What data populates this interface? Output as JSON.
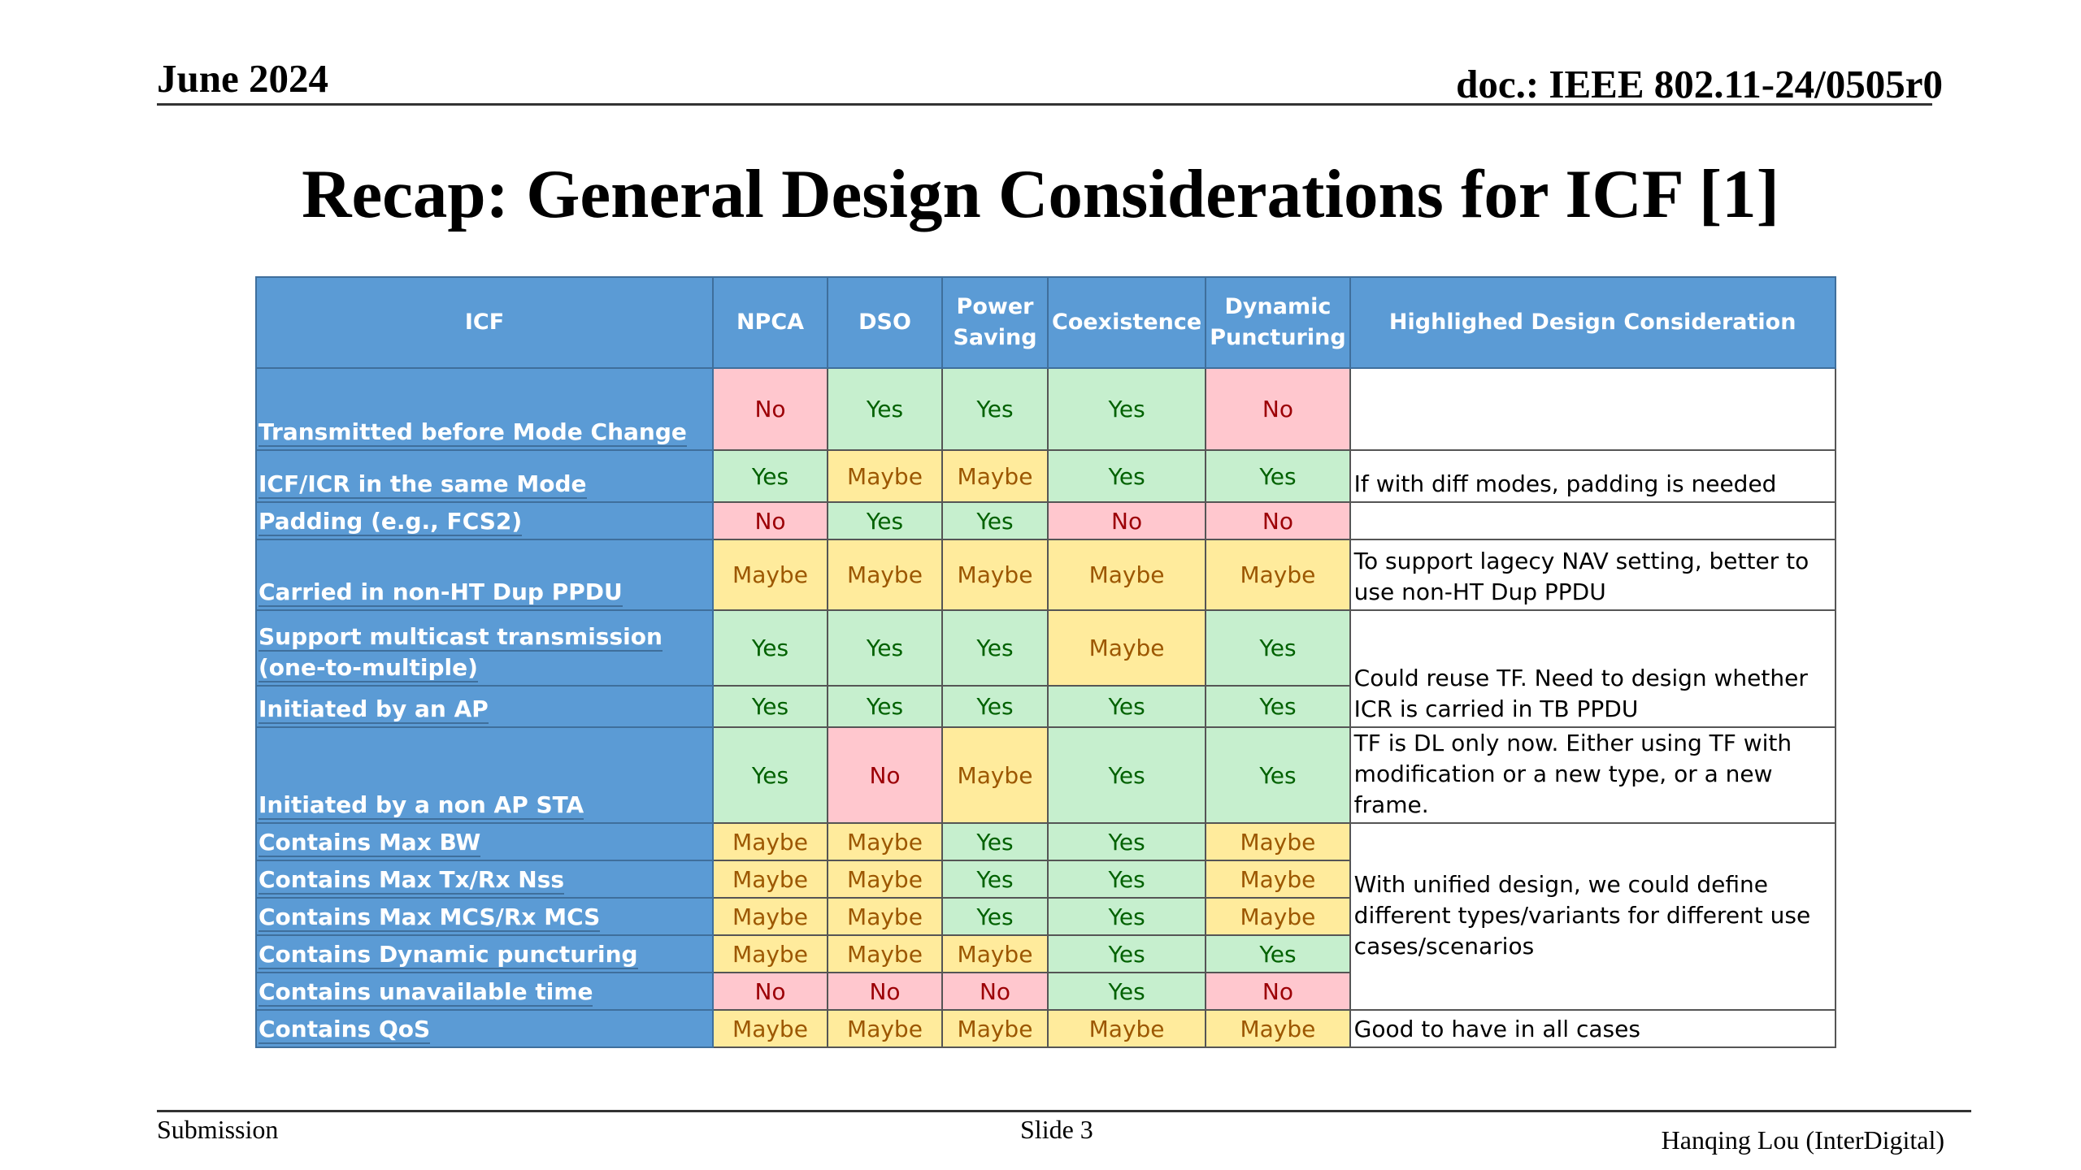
{
  "header": {
    "date": "June 2024",
    "doc": "doc.: IEEE 802.11-24/0505r0"
  },
  "title": "Recap: General Design Considerations for ICF [1]",
  "table": {
    "headers": [
      "ICF",
      "NPCA",
      "DSO",
      "Power Saving",
      "Coexistence",
      "Dynamic Puncturing",
      "Highlighed Design Consideration"
    ],
    "rows": [
      {
        "label": "Transmitted before Mode Change",
        "values": [
          "No",
          "Yes",
          "Yes",
          "Yes",
          "No"
        ]
      },
      {
        "label": "ICF/ICR in the same Mode",
        "values": [
          "Yes",
          "Maybe",
          "Maybe",
          "Yes",
          "Yes"
        ]
      },
      {
        "label": "Padding (e.g., FCS2)",
        "values": [
          "No",
          "Yes",
          "Yes",
          "No",
          "No"
        ]
      },
      {
        "label": "Carried in non-HT Dup PPDU",
        "values": [
          "Maybe",
          "Maybe",
          "Maybe",
          "Maybe",
          "Maybe"
        ]
      },
      {
        "label": "Support multicast transmission (one-to-multiple)",
        "values": [
          "Yes",
          "Yes",
          "Yes",
          "Maybe",
          "Yes"
        ]
      },
      {
        "label": "Initiated by an AP",
        "values": [
          "Yes",
          "Yes",
          "Yes",
          "Yes",
          "Yes"
        ]
      },
      {
        "label": "Initiated by a non AP STA",
        "values": [
          "Yes",
          "No",
          "Maybe",
          "Yes",
          "Yes"
        ]
      },
      {
        "label": "Contains Max BW",
        "values": [
          "Maybe",
          "Maybe",
          "Yes",
          "Yes",
          "Maybe"
        ]
      },
      {
        "label": "Contains Max Tx/Rx Nss",
        "values": [
          "Maybe",
          "Maybe",
          "Yes",
          "Yes",
          "Maybe"
        ]
      },
      {
        "label": "Contains Max MCS/Rx MCS",
        "values": [
          "Maybe",
          "Maybe",
          "Yes",
          "Yes",
          "Maybe"
        ]
      },
      {
        "label": "Contains Dynamic puncturing",
        "values": [
          "Maybe",
          "Maybe",
          "Maybe",
          "Yes",
          "Yes"
        ]
      },
      {
        "label": "Contains unavailable time",
        "values": [
          "No",
          "No",
          "No",
          "Yes",
          "No"
        ]
      },
      {
        "label": "Contains QoS",
        "values": [
          "Maybe",
          "Maybe",
          "Maybe",
          "Maybe",
          "Maybe"
        ]
      }
    ],
    "notes": [
      "",
      "If with diff modes, padding is needed",
      "",
      "To support lagecy NAV setting, better to use non-HT Dup PPDU",
      "Could reuse TF. Need to design whether ICR is carried in TB PPDU",
      "TF is DL only now. Either using TF with modification or a new type, or a new frame.",
      "With unified design, we could define different types/variants for different use cases/scenarios",
      "Good to have in all cases"
    ]
  },
  "footer": {
    "submission": "Submission",
    "slide": "Slide 3",
    "author": "Hanqing Lou (InterDigital)"
  }
}
